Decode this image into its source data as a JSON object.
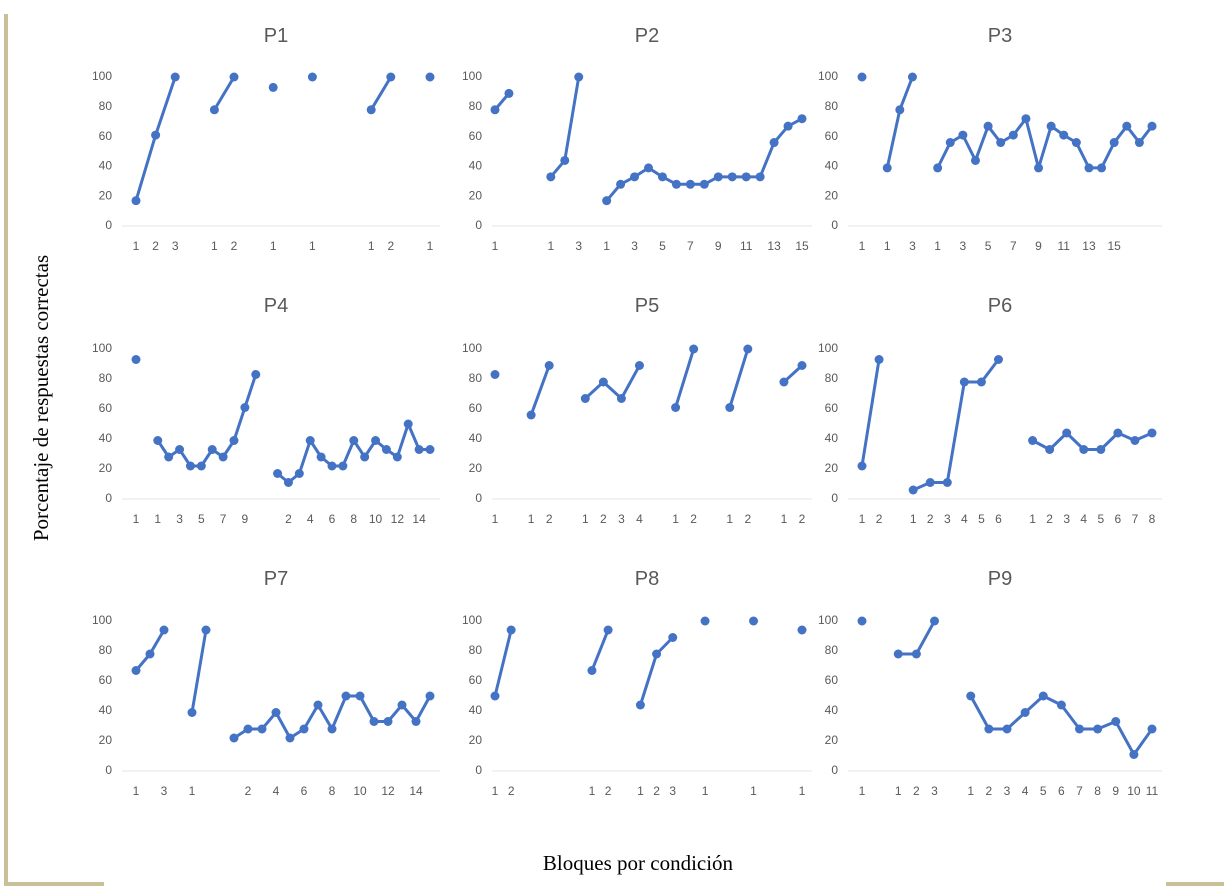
{
  "y_label": "Porcentaje de respuestas correctas",
  "x_label": "Bloques por condición",
  "chart_data": [
    {
      "type": "line",
      "title": "P1",
      "categories": [
        "1",
        "2",
        "3",
        null,
        "1",
        "2",
        null,
        "1",
        null,
        "1",
        null,
        null,
        "1",
        "2",
        null,
        "1"
      ],
      "series": [
        {
          "color": "#4472c4",
          "values": [
            17,
            61,
            100,
            null,
            78,
            100,
            null,
            93,
            null,
            100,
            null,
            null,
            78,
            100,
            null,
            100
          ]
        }
      ],
      "ylim": [
        0,
        100
      ],
      "yticks": [
        0,
        20,
        40,
        60,
        80,
        100
      ]
    },
    {
      "type": "line",
      "title": "P2",
      "categories": [
        "1",
        null,
        null,
        null,
        "1",
        null,
        "3",
        null,
        "1",
        null,
        "3",
        null,
        "5",
        null,
        "7",
        null,
        "9",
        null,
        "11",
        null,
        "13",
        null,
        "15"
      ],
      "series": [
        {
          "color": "#4472c4",
          "values": [
            78,
            89,
            null,
            null,
            33,
            44,
            100,
            null,
            17,
            28,
            33,
            39,
            33,
            28,
            28,
            28,
            33,
            33,
            33,
            33,
            56,
            67,
            72
          ]
        }
      ],
      "ylim": [
        0,
        100
      ],
      "yticks": [
        0,
        20,
        40,
        60,
        80,
        100
      ]
    },
    {
      "type": "line",
      "title": "P3",
      "categories": [
        "1",
        null,
        "1",
        null,
        "3",
        null,
        "1",
        null,
        "3",
        null,
        "5",
        null,
        "7",
        null,
        "9",
        null,
        "11",
        null,
        "13",
        null,
        "15",
        null,
        null,
        null
      ],
      "series": [
        {
          "color": "#4472c4",
          "values": [
            100,
            null,
            39,
            78,
            100,
            null,
            39,
            56,
            61,
            44,
            67,
            56,
            61,
            72,
            39,
            67,
            61,
            56,
            39,
            39,
            56,
            67,
            56,
            67
          ]
        }
      ],
      "ylim": [
        0,
        100
      ],
      "yticks": [
        0,
        20,
        40,
        60,
        80,
        100
      ]
    },
    {
      "type": "line",
      "title": "P4",
      "categories": [
        "1",
        null,
        "1",
        null,
        "3",
        null,
        "5",
        null,
        "7",
        null,
        "9",
        null,
        null,
        null,
        "2",
        null,
        "4",
        null,
        "6",
        null,
        "8",
        null,
        "10",
        null,
        "12",
        null,
        "14",
        null
      ],
      "series": [
        {
          "color": "#4472c4",
          "values": [
            93,
            null,
            39,
            28,
            33,
            22,
            22,
            33,
            28,
            39,
            61,
            83,
            null,
            17,
            11,
            17,
            39,
            28,
            22,
            22,
            39,
            28,
            39,
            33,
            28,
            50,
            33,
            33
          ]
        }
      ],
      "ylim": [
        0,
        100
      ],
      "yticks": [
        0,
        20,
        40,
        60,
        80,
        100
      ]
    },
    {
      "type": "line",
      "title": "P5",
      "categories": [
        "1",
        null,
        "1",
        "2",
        null,
        "1",
        "2",
        "3",
        "4",
        null,
        "1",
        "2",
        null,
        "1",
        "2",
        null,
        "1",
        "2"
      ],
      "series": [
        {
          "color": "#4472c4",
          "values": [
            83,
            null,
            56,
            89,
            null,
            67,
            78,
            67,
            89,
            null,
            61,
            100,
            null,
            61,
            100,
            null,
            78,
            89
          ]
        }
      ],
      "ylim": [
        0,
        100
      ],
      "yticks": [
        0,
        20,
        40,
        60,
        80,
        100
      ]
    },
    {
      "type": "line",
      "title": "P6",
      "categories": [
        "1",
        "2",
        null,
        "1",
        "2",
        "3",
        "4",
        "5",
        "6",
        null,
        "1",
        "2",
        "3",
        "4",
        "5",
        "6",
        "7",
        "8"
      ],
      "series": [
        {
          "color": "#4472c4",
          "values": [
            22,
            93,
            null,
            6,
            11,
            11,
            78,
            78,
            93,
            null,
            39,
            33,
            44,
            33,
            33,
            44,
            39,
            44
          ]
        }
      ],
      "ylim": [
        0,
        100
      ],
      "yticks": [
        0,
        20,
        40,
        60,
        80,
        100
      ]
    },
    {
      "type": "line",
      "title": "P7",
      "categories": [
        "1",
        null,
        "3",
        null,
        "1",
        null,
        null,
        null,
        "2",
        null,
        "4",
        null,
        "6",
        null,
        "8",
        null,
        "10",
        null,
        "12",
        null,
        "14",
        null
      ],
      "series": [
        {
          "color": "#4472c4",
          "values": [
            67,
            78,
            94,
            null,
            39,
            94,
            null,
            22,
            28,
            28,
            39,
            22,
            28,
            44,
            28,
            50,
            50,
            33,
            33,
            44,
            33,
            50
          ]
        }
      ],
      "ylim": [
        0,
        100
      ],
      "yticks": [
        0,
        20,
        40,
        60,
        80,
        100
      ]
    },
    {
      "type": "line",
      "title": "P8",
      "categories": [
        "1",
        "2",
        null,
        null,
        null,
        null,
        "1",
        "2",
        null,
        "1",
        "2",
        "3",
        null,
        "1",
        null,
        null,
        "1",
        null,
        null,
        "1"
      ],
      "series": [
        {
          "color": "#4472c4",
          "values": [
            50,
            94,
            null,
            null,
            null,
            null,
            67,
            94,
            null,
            44,
            78,
            89,
            null,
            100,
            null,
            null,
            100,
            null,
            null,
            94
          ]
        }
      ],
      "ylim": [
        0,
        100
      ],
      "yticks": [
        0,
        20,
        40,
        60,
        80,
        100
      ]
    },
    {
      "type": "line",
      "title": "P9",
      "categories": [
        "1",
        null,
        "1",
        "2",
        "3",
        null,
        "1",
        "2",
        "3",
        "4",
        "5",
        "6",
        "7",
        "8",
        "9",
        "10",
        "11"
      ],
      "series": [
        {
          "color": "#4472c4",
          "values": [
            100,
            null,
            78,
            78,
            100,
            null,
            50,
            28,
            28,
            39,
            50,
            44,
            28,
            28,
            33,
            11,
            28
          ]
        }
      ],
      "ylim": [
        0,
        100
      ],
      "yticks": [
        0,
        20,
        40,
        60,
        80,
        100
      ]
    }
  ]
}
